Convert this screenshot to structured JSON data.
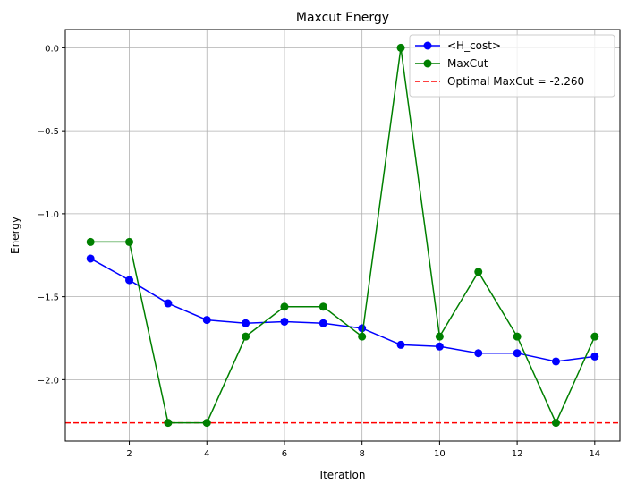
{
  "chart_data": {
    "type": "line",
    "title": "Maxcut Energy",
    "xlabel": "Iteration",
    "ylabel": "Energy",
    "xlim": [
      0.35,
      14.65
    ],
    "ylim": [
      -2.37,
      0.11
    ],
    "xticks": [
      2,
      4,
      6,
      8,
      10,
      12,
      14
    ],
    "xtick_labels": [
      "2",
      "4",
      "6",
      "8",
      "10",
      "12",
      "14"
    ],
    "yticks": [
      0.0,
      -0.5,
      -1.0,
      -1.5,
      -2.0
    ],
    "ytick_labels": [
      "0.0",
      "−0.5",
      "−1.0",
      "−1.5",
      "−2.0"
    ],
    "grid": true,
    "legend_position": "top-right",
    "x": [
      1,
      2,
      3,
      4,
      5,
      6,
      7,
      8,
      9,
      10,
      11,
      12,
      13,
      14
    ],
    "series": [
      {
        "name": "<H_cost>",
        "color": "#0000ff",
        "marker": "circle",
        "values": [
          -1.27,
          -1.4,
          -1.54,
          -1.64,
          -1.66,
          -1.65,
          -1.66,
          -1.69,
          -1.79,
          -1.8,
          -1.84,
          -1.84,
          -1.89,
          -1.86
        ]
      },
      {
        "name": "MaxCut",
        "color": "#008000",
        "marker": "circle",
        "values": [
          -1.17,
          -1.17,
          -2.26,
          -2.26,
          -1.74,
          -1.56,
          -1.56,
          -1.74,
          0.0,
          -1.74,
          -1.35,
          -1.74,
          -2.26,
          -1.74
        ]
      }
    ],
    "hlines": [
      {
        "name": "Optimal MaxCut = -2.260",
        "value": -2.26,
        "color": "#ff0000",
        "style": "dashed"
      }
    ]
  }
}
